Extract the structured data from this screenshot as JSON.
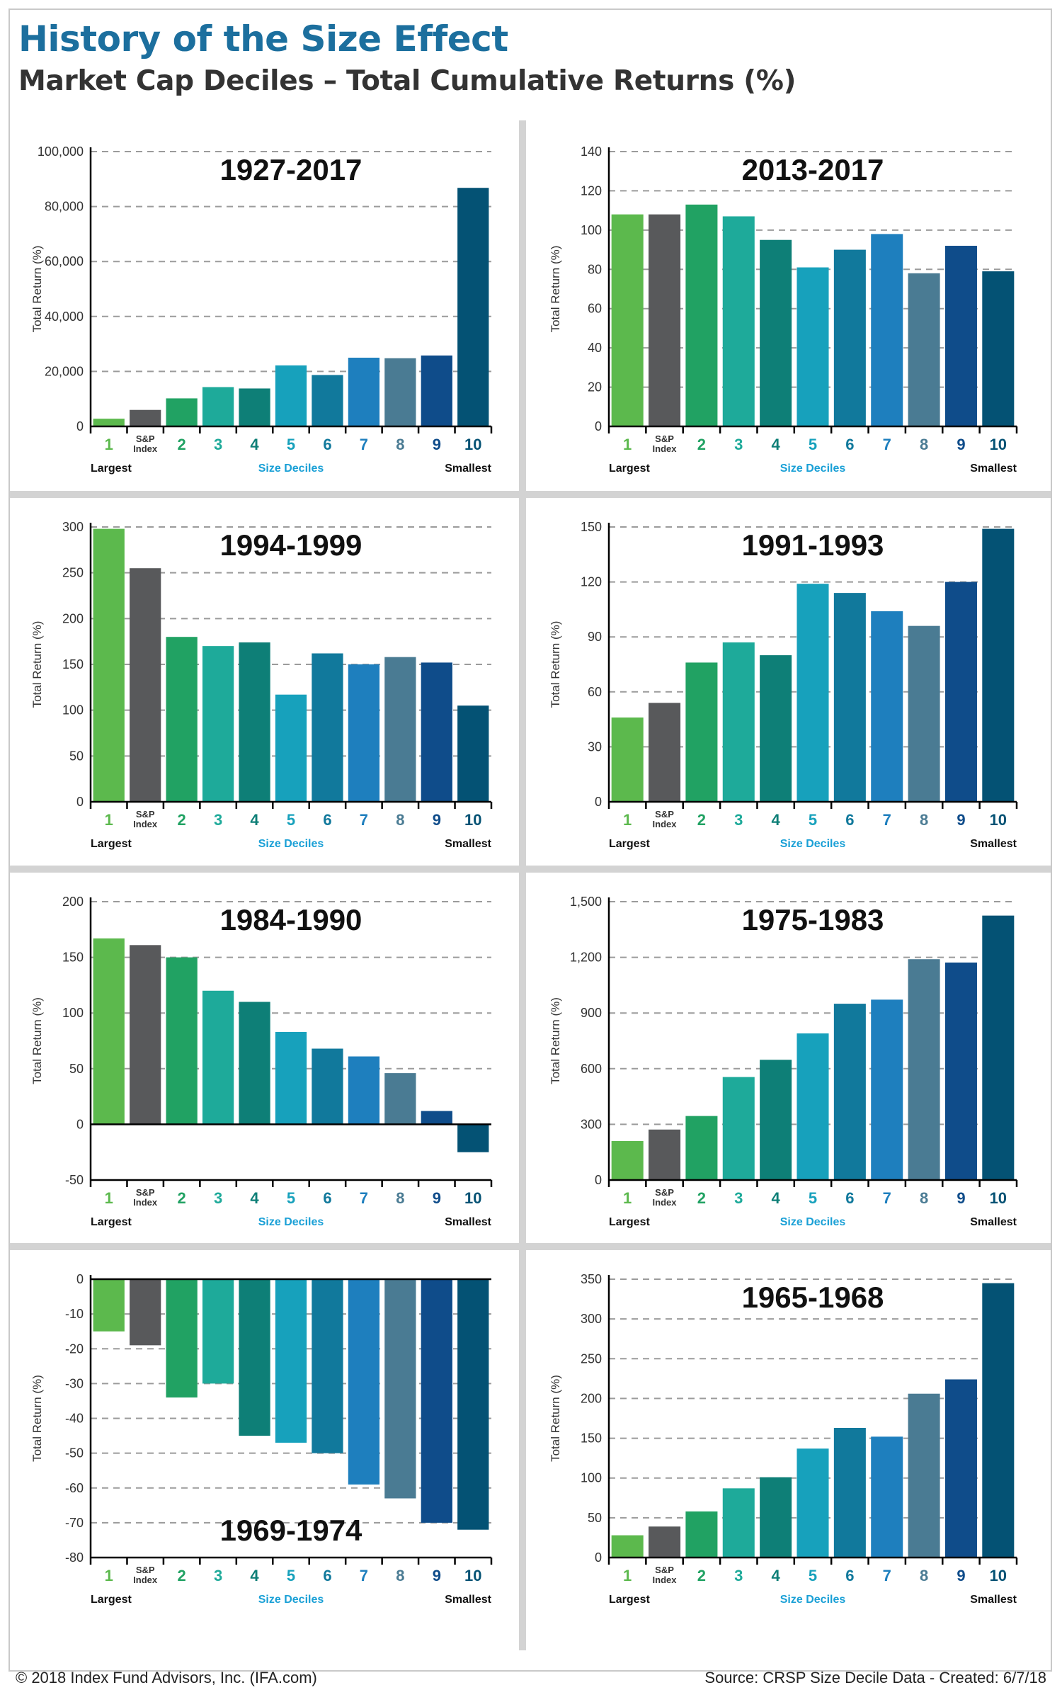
{
  "header": {
    "title": "History of the Size Effect",
    "subtitle": "Market Cap Deciles – Total Cumulative Returns (%)"
  },
  "footer": {
    "copyright": "© 2018 Index Fund Advisors, Inc. (IFA.com)",
    "source": "Source: CRSP Size Decile Data - Created: 6/7/18"
  },
  "colors": [
    "#5cb94d",
    "#58595b",
    "#21a263",
    "#1eaa9a",
    "#0e7f77",
    "#17a1bc",
    "#11799c",
    "#1e7fbe",
    "#4a7b93",
    "#0f4c8a",
    "#045274"
  ],
  "chart_data": [
    {
      "type": "bar",
      "title": "1927-2017",
      "title_position": "top",
      "ylabel": "Total Return (%)",
      "xlabel": "Size Deciles",
      "x_left_label": "Largest",
      "x_right_label": "Smallest",
      "categories": [
        "1",
        "S&P Index",
        "2",
        "3",
        "4",
        "5",
        "6",
        "7",
        "8",
        "9",
        "10"
      ],
      "values": [
        2800,
        6000,
        10200,
        14300,
        13800,
        22200,
        18700,
        25000,
        24800,
        25800,
        86800
      ],
      "ylim": [
        0,
        100000
      ],
      "yticks": [
        0,
        20000,
        40000,
        60000,
        80000,
        100000
      ],
      "ytick_labels": [
        "0",
        "20,000",
        "40,000",
        "60,000",
        "80,000",
        "100,000"
      ]
    },
    {
      "type": "bar",
      "title": "2013-2017",
      "title_position": "top",
      "ylabel": "Total Return (%)",
      "xlabel": "Size Deciles",
      "x_left_label": "Largest",
      "x_right_label": "Smallest",
      "categories": [
        "1",
        "S&P Index",
        "2",
        "3",
        "4",
        "5",
        "6",
        "7",
        "8",
        "9",
        "10"
      ],
      "values": [
        108,
        108,
        113,
        107,
        95,
        81,
        90,
        98,
        78,
        92,
        79
      ],
      "ylim": [
        0,
        140
      ],
      "yticks": [
        0,
        20,
        40,
        60,
        80,
        100,
        120,
        140
      ],
      "ytick_labels": [
        "0",
        "20",
        "40",
        "60",
        "80",
        "100",
        "120",
        "140"
      ]
    },
    {
      "type": "bar",
      "title": "1994-1999",
      "title_position": "top",
      "ylabel": "Total Return (%)",
      "xlabel": "Size Deciles",
      "x_left_label": "Largest",
      "x_right_label": "Smallest",
      "categories": [
        "1",
        "S&P Index",
        "2",
        "3",
        "4",
        "5",
        "6",
        "7",
        "8",
        "9",
        "10"
      ],
      "values": [
        298,
        255,
        180,
        170,
        174,
        117,
        162,
        150,
        158,
        152,
        105
      ],
      "ylim": [
        0,
        300
      ],
      "yticks": [
        0,
        50,
        100,
        150,
        200,
        250,
        300
      ],
      "ytick_labels": [
        "0",
        "50",
        "100",
        "150",
        "200",
        "250",
        "300"
      ]
    },
    {
      "type": "bar",
      "title": "1991-1993",
      "title_position": "top",
      "ylabel": "Total Return (%)",
      "xlabel": "Size Deciles",
      "x_left_label": "Largest",
      "x_right_label": "Smallest",
      "categories": [
        "1",
        "S&P Index",
        "2",
        "3",
        "4",
        "5",
        "6",
        "7",
        "8",
        "9",
        "10"
      ],
      "values": [
        46,
        54,
        76,
        87,
        80,
        119,
        114,
        104,
        96,
        120,
        149
      ],
      "ylim": [
        0,
        150
      ],
      "yticks": [
        0,
        30,
        60,
        90,
        120,
        150
      ],
      "ytick_labels": [
        "0",
        "30",
        "60",
        "90",
        "120",
        "150"
      ]
    },
    {
      "type": "bar",
      "title": "1984-1990",
      "title_position": "top",
      "ylabel": "Total Return (%)",
      "xlabel": "Size Deciles",
      "x_left_label": "Largest",
      "x_right_label": "Smallest",
      "categories": [
        "1",
        "S&P Index",
        "2",
        "3",
        "4",
        "5",
        "6",
        "7",
        "8",
        "9",
        "10"
      ],
      "values": [
        167,
        161,
        150,
        120,
        110,
        83,
        68,
        61,
        46,
        12,
        -25
      ],
      "ylim": [
        -50,
        200
      ],
      "yticks": [
        -50,
        0,
        50,
        100,
        150,
        200
      ],
      "ytick_labels": [
        "-50",
        "0",
        "50",
        "100",
        "150",
        "200"
      ]
    },
    {
      "type": "bar",
      "title": "1975-1983",
      "title_position": "top",
      "ylabel": "Total Return (%)",
      "xlabel": "Size Deciles",
      "x_left_label": "Largest",
      "x_right_label": "Smallest",
      "categories": [
        "1",
        "S&P Index",
        "2",
        "3",
        "4",
        "5",
        "6",
        "7",
        "8",
        "9",
        "10"
      ],
      "values": [
        210,
        272,
        345,
        555,
        648,
        790,
        950,
        972,
        1190,
        1172,
        1425
      ],
      "ylim": [
        0,
        1500
      ],
      "yticks": [
        0,
        300,
        600,
        900,
        1200,
        1500
      ],
      "ytick_labels": [
        "0",
        "300",
        "600",
        "900",
        "1,200",
        "1,500"
      ]
    },
    {
      "type": "bar",
      "title": "1969-1974",
      "title_position": "bottom",
      "ylabel": "Total Return (%)",
      "xlabel": "Size Deciles",
      "x_left_label": "Largest",
      "x_right_label": "Smallest",
      "categories": [
        "1",
        "S&P Index",
        "2",
        "3",
        "4",
        "5",
        "6",
        "7",
        "8",
        "9",
        "10"
      ],
      "values": [
        -15,
        -19,
        -34,
        -30,
        -45,
        -47,
        -50,
        -59,
        -63,
        -70,
        -72
      ],
      "ylim": [
        -80,
        0
      ],
      "yticks": [
        -80,
        -70,
        -60,
        -50,
        -40,
        -30,
        -20,
        -10,
        0
      ],
      "ytick_labels": [
        "-80",
        "-70",
        "-60",
        "-50",
        "-40",
        "-30",
        "-20",
        "-10",
        "0"
      ]
    },
    {
      "type": "bar",
      "title": "1965-1968",
      "title_position": "top",
      "ylabel": "Total Return (%)",
      "xlabel": "Size Deciles",
      "x_left_label": "Largest",
      "x_right_label": "Smallest",
      "categories": [
        "1",
        "S&P Index",
        "2",
        "3",
        "4",
        "5",
        "6",
        "7",
        "8",
        "9",
        "10"
      ],
      "values": [
        28,
        39,
        58,
        87,
        101,
        137,
        163,
        152,
        206,
        224,
        345
      ],
      "ylim": [
        0,
        350
      ],
      "yticks": [
        0,
        50,
        100,
        150,
        200,
        250,
        300,
        350
      ],
      "ytick_labels": [
        "0",
        "50",
        "100",
        "150",
        "200",
        "250",
        "300",
        "350"
      ]
    }
  ]
}
